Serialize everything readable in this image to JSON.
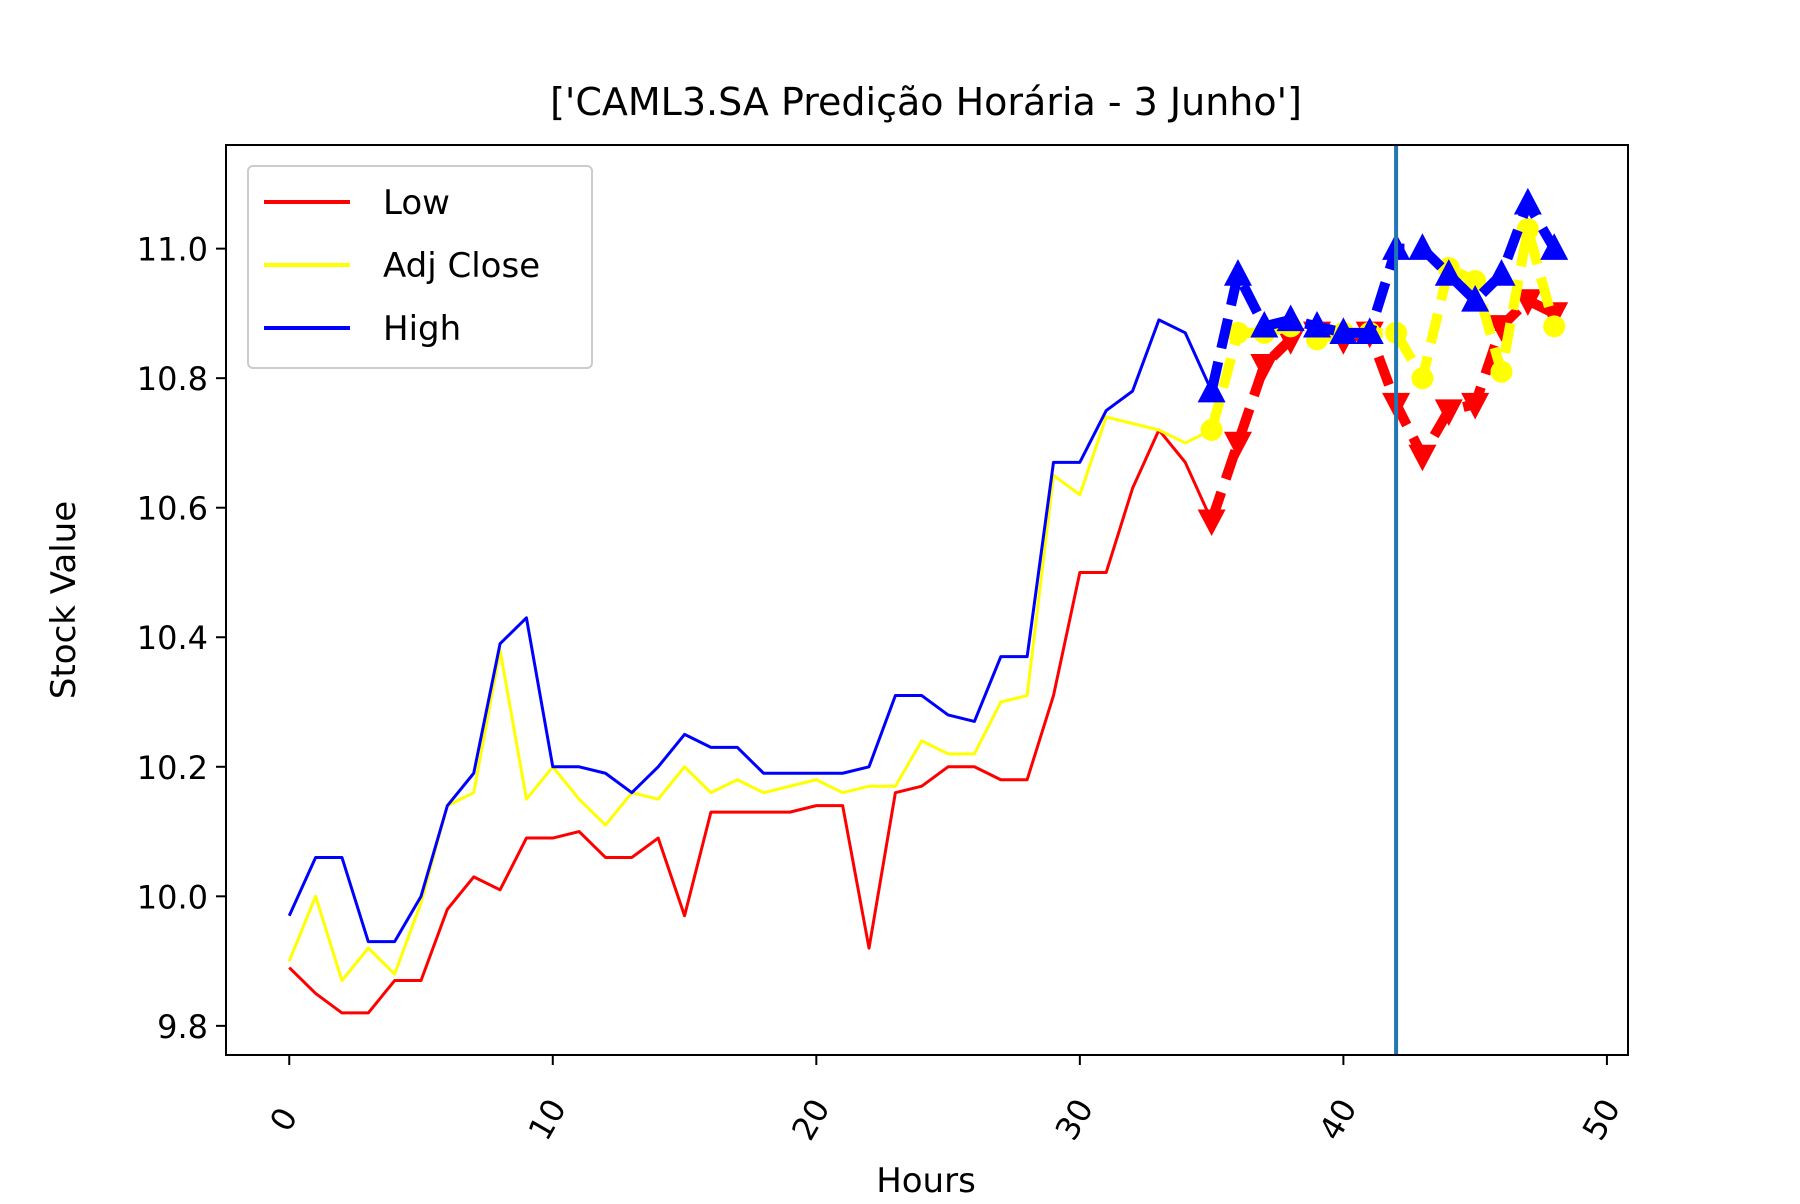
{
  "chart_data": {
    "type": "line",
    "title": "['CAML3.SA Predição Horária - 3 Junho']",
    "xlabel": "Hours",
    "ylabel": "Stock Value",
    "xlim": [
      -2.4,
      50.8
    ],
    "ylim": [
      9.755,
      11.16
    ],
    "xticks": [
      0,
      10,
      20,
      30,
      40,
      50
    ],
    "xtick_labels": [
      "0",
      "10",
      "20",
      "30",
      "40",
      "50"
    ],
    "yticks": [
      9.8,
      10.0,
      10.2,
      10.4,
      10.6,
      10.8,
      11.0
    ],
    "ytick_labels": [
      "9.8",
      "10.0",
      "10.2",
      "10.4",
      "10.6",
      "10.8",
      "11.0"
    ],
    "grid": false,
    "legend_position": "upper-left",
    "vline_x": 42,
    "vline_color": "#1f77b4",
    "series": [
      {
        "name": "Low",
        "color": "#ff0000",
        "x": [
          0,
          1,
          2,
          3,
          4,
          5,
          6,
          7,
          8,
          9,
          10,
          11,
          12,
          13,
          14,
          15,
          16,
          17,
          18,
          19,
          20,
          21,
          22,
          23,
          24,
          25,
          26,
          27,
          28,
          29,
          30,
          31,
          32,
          33,
          34,
          35
        ],
        "values": [
          9.89,
          9.85,
          9.82,
          9.82,
          9.87,
          9.87,
          9.98,
          10.03,
          10.01,
          10.09,
          10.09,
          10.1,
          10.06,
          10.06,
          10.09,
          9.97,
          10.13,
          10.13,
          10.13,
          10.13,
          10.14,
          10.14,
          9.92,
          10.16,
          10.17,
          10.2,
          10.2,
          10.18,
          10.18,
          10.31,
          10.5,
          10.5,
          10.63,
          10.72,
          10.67,
          10.58
        ],
        "pred_x": [
          35,
          36,
          37,
          38,
          39,
          40,
          41,
          42,
          43,
          44,
          45,
          46,
          47,
          48
        ],
        "pred_values": [
          10.58,
          10.7,
          10.82,
          10.86,
          10.87,
          10.86,
          10.87,
          10.76,
          10.68,
          10.75,
          10.76,
          10.88,
          10.92,
          10.9
        ],
        "pred_marker": "triangle-down"
      },
      {
        "name": "Adj Close",
        "color": "#ffff00",
        "x": [
          0,
          1,
          2,
          3,
          4,
          5,
          6,
          7,
          8,
          9,
          10,
          11,
          12,
          13,
          14,
          15,
          16,
          17,
          18,
          19,
          20,
          21,
          22,
          23,
          24,
          25,
          26,
          27,
          28,
          29,
          30,
          31,
          32,
          33,
          34,
          35
        ],
        "values": [
          9.9,
          10.0,
          9.87,
          9.92,
          9.88,
          9.99,
          10.14,
          10.16,
          10.38,
          10.15,
          10.2,
          10.15,
          10.11,
          10.16,
          10.15,
          10.2,
          10.16,
          10.18,
          10.16,
          10.17,
          10.18,
          10.16,
          10.17,
          10.17,
          10.24,
          10.22,
          10.22,
          10.3,
          10.31,
          10.65,
          10.62,
          10.74,
          10.73,
          10.72,
          10.7,
          10.72
        ],
        "pred_x": [
          35,
          36,
          37,
          38,
          39,
          40,
          41,
          42,
          43,
          44,
          45,
          46,
          47,
          48
        ],
        "pred_values": [
          10.72,
          10.87,
          10.87,
          10.88,
          10.86,
          10.87,
          10.87,
          10.87,
          10.8,
          10.97,
          10.95,
          10.81,
          11.03,
          10.88
        ],
        "pred_marker": "circle"
      },
      {
        "name": "High",
        "color": "#0000ff",
        "x": [
          0,
          1,
          2,
          3,
          4,
          5,
          6,
          7,
          8,
          9,
          10,
          11,
          12,
          13,
          14,
          15,
          16,
          17,
          18,
          19,
          20,
          21,
          22,
          23,
          24,
          25,
          26,
          27,
          28,
          29,
          30,
          31,
          32,
          33,
          34,
          35
        ],
        "values": [
          9.97,
          10.06,
          10.06,
          9.93,
          9.93,
          10.0,
          10.14,
          10.19,
          10.39,
          10.43,
          10.2,
          10.2,
          10.19,
          10.16,
          10.2,
          10.25,
          10.23,
          10.23,
          10.19,
          10.19,
          10.19,
          10.19,
          10.2,
          10.31,
          10.31,
          10.28,
          10.27,
          10.37,
          10.37,
          10.67,
          10.67,
          10.75,
          10.78,
          10.89,
          10.87,
          10.78
        ],
        "pred_x": [
          35,
          36,
          37,
          38,
          39,
          40,
          41,
          42,
          43,
          44,
          45,
          46,
          47,
          48
        ],
        "pred_values": [
          10.78,
          10.96,
          10.88,
          10.89,
          10.88,
          10.87,
          10.87,
          11.0,
          11.0,
          10.96,
          10.92,
          10.96,
          11.07,
          11.0
        ],
        "pred_marker": "triangle-up"
      }
    ]
  }
}
